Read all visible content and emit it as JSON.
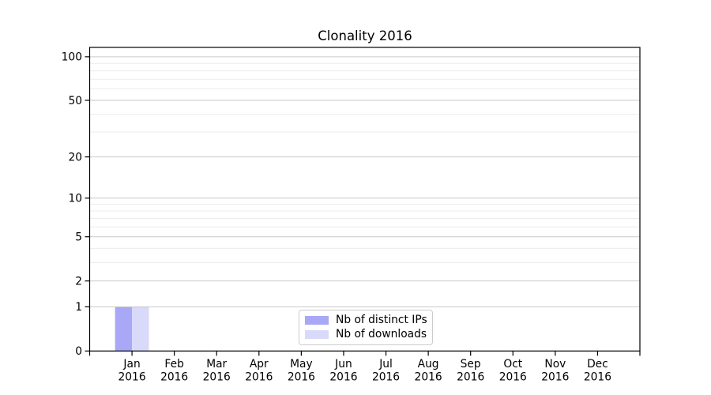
{
  "figure": {
    "background": "#ffffff"
  },
  "chart_data": {
    "type": "bar",
    "title": "Clonality 2016",
    "categories": [
      "Jan",
      "Feb",
      "Mar",
      "Apr",
      "May",
      "Jun",
      "Jul",
      "Aug",
      "Sep",
      "Oct",
      "Nov",
      "Dec"
    ],
    "category_sublabel": "2016",
    "series": [
      {
        "name": "Nb of distinct IPs",
        "color": "#a8a8f6",
        "values": [
          1,
          0,
          0,
          0,
          0,
          0,
          0,
          0,
          0,
          0,
          0,
          0
        ]
      },
      {
        "name": "Nb of downloads",
        "color": "#d9d9fa",
        "values": [
          1,
          0,
          0,
          0,
          0,
          0,
          0,
          0,
          0,
          0,
          0,
          0
        ]
      }
    ],
    "y_scale": "log1p",
    "ylim": [
      0,
      115
    ],
    "y_major_ticks": [
      0,
      1,
      2,
      5,
      10,
      20,
      50,
      100
    ],
    "y_tick_labels": [
      "0",
      "1",
      "2",
      "5",
      "10",
      "20",
      "50",
      "100"
    ],
    "y_minor_gridlines": [
      3,
      4,
      6,
      7,
      8,
      9,
      30,
      40,
      60,
      70,
      80,
      90
    ],
    "grid": "horizontal",
    "xlabel": "",
    "ylabel": "",
    "legend": {
      "position": "bottom-center",
      "entries": [
        "Nb of distinct IPs",
        "Nb of downloads"
      ]
    }
  },
  "colors": {
    "axis": "#000000",
    "text": "#000000",
    "grid_major": "#c9c9c9",
    "grid_minor": "#ececec",
    "legend_border": "#cccccc",
    "background": "#ffffff"
  }
}
